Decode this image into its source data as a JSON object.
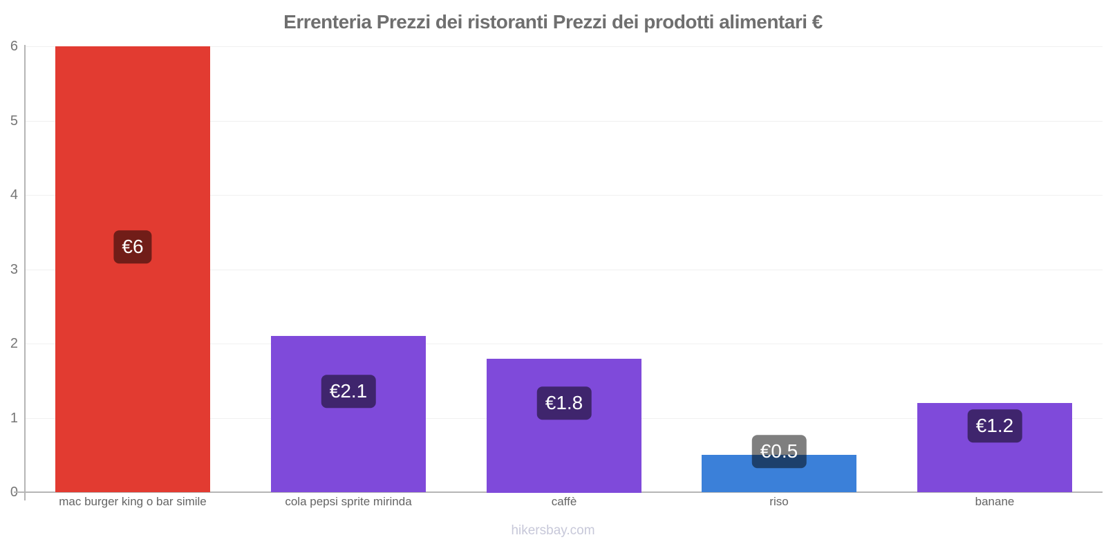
{
  "header": {
    "title": "Errenteria Prezzi dei ristoranti Prezzi dei prodotti alimentari €"
  },
  "footer": {
    "watermark": "hikersbay.com"
  },
  "chart_data": {
    "type": "bar",
    "title": "Errenteria Prezzi dei ristoranti Prezzi dei prodotti alimentari €",
    "categories": [
      "mac burger king o bar simile",
      "cola pepsi sprite mirinda",
      "caffè",
      "riso",
      "banane"
    ],
    "values": [
      6,
      2.1,
      1.8,
      0.5,
      1.2
    ],
    "value_labels": [
      "€6",
      "€2.1",
      "€1.8",
      "€0.5",
      "€1.2"
    ],
    "bar_colors": [
      "#e23b31",
      "#7f4ada",
      "#7f4ada",
      "#3b80d9",
      "#7f4ada"
    ],
    "value_label_overlay": "rgba(0,0,0,0.5)",
    "currency": "€",
    "xlabel": "",
    "ylabel": "",
    "ylim": [
      0,
      6
    ],
    "yticks": [
      0,
      1,
      2,
      3,
      4,
      5,
      6
    ],
    "grid": true,
    "legend": false,
    "watermark": "hikersbay.com"
  }
}
